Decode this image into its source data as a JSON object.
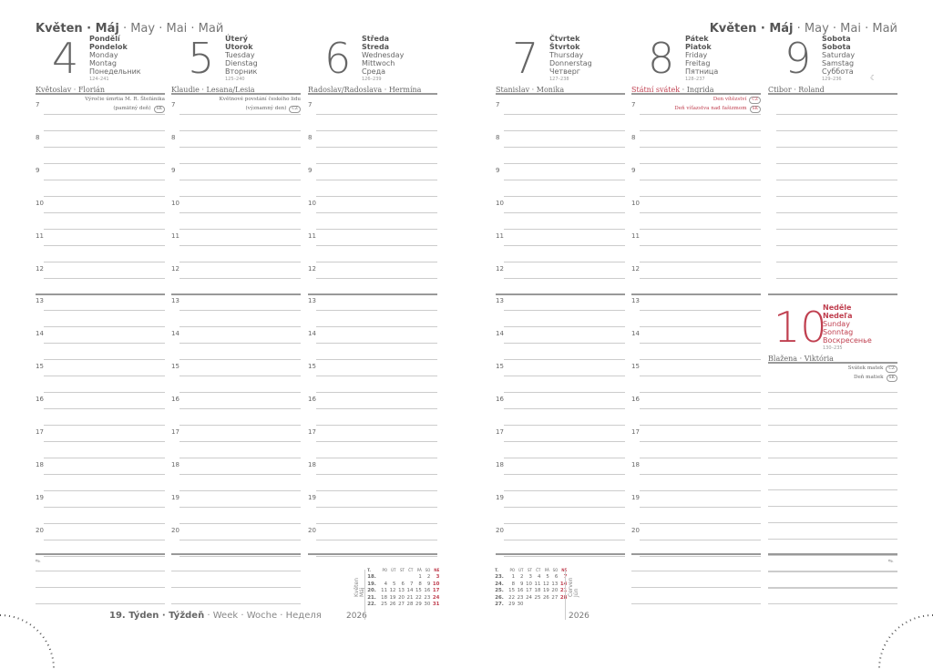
{
  "month": {
    "bold": "Květen · Máj",
    "rest": " · May · Mai · Май"
  },
  "days": [
    {
      "num": "4",
      "cz": "Pondělí",
      "sk": "Pondelok",
      "en": "Monday",
      "de": "Montag",
      "ru": "Понедельник",
      "count": "124–241",
      "names": "Květoslav · Florián",
      "holidays": [
        {
          "text": "Výročie úmrtia M. R. Štefánika",
          "badge": ""
        },
        {
          "text": "(pamätný deň)",
          "badge": "SK"
        }
      ]
    },
    {
      "num": "5",
      "cz": "Úterý",
      "sk": "Utorok",
      "en": "Tuesday",
      "de": "Dienstag",
      "ru": "Вторник",
      "count": "125–240",
      "names": "Klaudie · Lesana/Lesia",
      "holidays": [
        {
          "text": "Květnové povstání českého lidu",
          "badge": ""
        },
        {
          "text": "(významný den)",
          "badge": "CZ"
        }
      ]
    },
    {
      "num": "6",
      "cz": "Středa",
      "sk": "Streda",
      "en": "Wednesday",
      "de": "Mittwoch",
      "ru": "Среда",
      "count": "126–239",
      "names": "Radoslav/Radoslava · Hermína",
      "holidays": []
    },
    {
      "num": "7",
      "cz": "Čtvrtek",
      "sk": "Štvrtok",
      "en": "Thursday",
      "de": "Donnerstag",
      "ru": "Четверг",
      "count": "127–238",
      "names": "Stanislav · Monika",
      "holidays": []
    },
    {
      "num": "8",
      "cz": "Pátek",
      "sk": "Piatok",
      "en": "Friday",
      "de": "Freitag",
      "ru": "Пятница",
      "count": "128–237",
      "names_red": "Státní svátek",
      "names": " · Ingrida",
      "holidays": [
        {
          "text": "Den vítězství",
          "badge": "CZ",
          "red": true
        },
        {
          "text": "Deň víťazstva nad fašizmom",
          "badge": "SK",
          "red": true
        }
      ]
    },
    {
      "num": "9",
      "cz": "Sobota",
      "sk": "Sobota",
      "en": "Saturday",
      "de": "Samstag",
      "ru": "Суббота",
      "count": "129–236",
      "names": "Ctibor · Roland",
      "holidays": [],
      "moon": "☾"
    },
    {
      "num": "10",
      "cz": "Neděle",
      "sk": "Nedeľa",
      "en": "Sunday",
      "de": "Sonntag",
      "ru": "Воскресенье",
      "count": "130–235",
      "names": "Blažena · Viktória",
      "holidays": [
        {
          "text": "Svátek matek",
          "badge": "CZ"
        },
        {
          "text": "Deň matiek",
          "badge": "SK"
        }
      ]
    }
  ],
  "hours": [
    "7",
    "8",
    "9",
    "10",
    "11",
    "12",
    "13",
    "14",
    "15",
    "16",
    "17",
    "18",
    "19",
    "20"
  ],
  "footer": {
    "bold": "19. Týden · Týždeň",
    "rest": " · Week · Woche · Неделя"
  },
  "year": "2026",
  "mini_header": [
    "T.",
    "PO",
    "ÚT",
    "ST",
    "ČT",
    "PÁ",
    "SO",
    "NE"
  ],
  "mini_may": {
    "label1": "Květen",
    "label2": "Máj",
    "rows": [
      [
        "18.",
        "",
        "",
        "",
        "",
        "1",
        "2",
        "3"
      ],
      [
        "19.",
        "4",
        "5",
        "6",
        "7",
        "8",
        "9",
        "10"
      ],
      [
        "20.",
        "11",
        "12",
        "13",
        "14",
        "15",
        "16",
        "17"
      ],
      [
        "21.",
        "18",
        "19",
        "20",
        "21",
        "22",
        "23",
        "24"
      ],
      [
        "22.",
        "25",
        "26",
        "27",
        "28",
        "29",
        "30",
        "31"
      ]
    ]
  },
  "mini_june": {
    "label1": "Červen",
    "label2": "Jún",
    "rows": [
      [
        "23.",
        "1",
        "2",
        "3",
        "4",
        "5",
        "6",
        "7"
      ],
      [
        "24.",
        "8",
        "9",
        "10",
        "11",
        "12",
        "13",
        "14"
      ],
      [
        "25.",
        "15",
        "16",
        "17",
        "18",
        "19",
        "20",
        "21"
      ],
      [
        "26.",
        "22",
        "23",
        "24",
        "25",
        "26",
        "27",
        "28"
      ],
      [
        "27.",
        "29",
        "30",
        "",
        "",
        "",
        "",
        ""
      ]
    ]
  },
  "colors": {
    "accent": "#c04050",
    "text": "#555555"
  }
}
